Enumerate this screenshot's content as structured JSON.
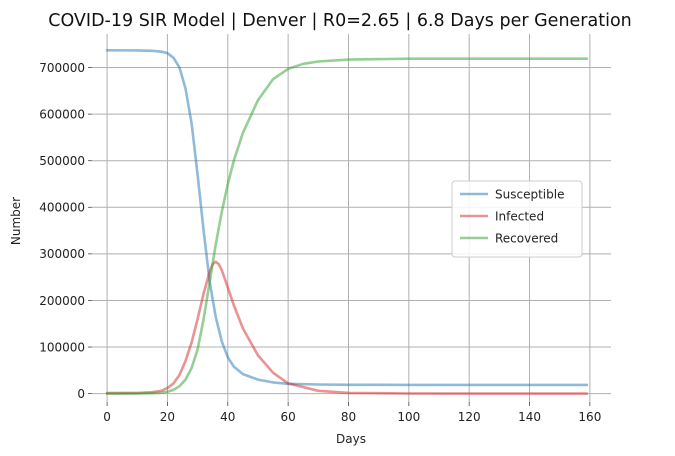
{
  "chart_data": {
    "type": "line",
    "title": "COVID-19 SIR Model | Denver | R0=2.65 | 6.8 Days per Generation",
    "xlabel": "Days",
    "ylabel": "Number",
    "xlim": [
      -5,
      167
    ],
    "ylim": [
      -18000,
      772000
    ],
    "xticks": [
      0,
      20,
      40,
      60,
      80,
      100,
      120,
      140,
      160
    ],
    "yticks": [
      0,
      100000,
      200000,
      300000,
      400000,
      500000,
      600000,
      700000
    ],
    "grid": true,
    "legend_position": "center-right",
    "series": [
      {
        "name": "Susceptible",
        "color": "#1f77b4",
        "x": [
          0,
          10,
          15,
          18,
          20,
          22,
          24,
          26,
          28,
          30,
          32,
          34,
          36,
          38,
          40,
          42,
          45,
          50,
          55,
          60,
          70,
          80,
          100,
          120,
          140,
          159
        ],
        "y": [
          737000,
          736800,
          736000,
          734000,
          731000,
          721000,
          700000,
          655000,
          580000,
          470000,
          350000,
          240000,
          165000,
          112000,
          78000,
          58000,
          42000,
          30000,
          24000,
          21000,
          19500,
          19000,
          18800,
          18800,
          18800,
          18800
        ]
      },
      {
        "name": "Infected",
        "color": "#d62728",
        "x": [
          0,
          10,
          15,
          18,
          20,
          22,
          24,
          26,
          28,
          30,
          32,
          34,
          35,
          36,
          37,
          38,
          40,
          42,
          45,
          50,
          55,
          60,
          70,
          80,
          100,
          120,
          140,
          159
        ],
        "y": [
          1000,
          1500,
          3000,
          6000,
          12000,
          22000,
          40000,
          70000,
          110000,
          160000,
          215000,
          262000,
          278000,
          283000,
          278000,
          265000,
          228000,
          190000,
          140000,
          82000,
          45000,
          22000,
          6000,
          1500,
          200,
          0,
          0,
          0
        ]
      },
      {
        "name": "Recovered",
        "color": "#2ca02c",
        "x": [
          0,
          10,
          15,
          18,
          20,
          22,
          24,
          26,
          28,
          30,
          32,
          34,
          36,
          38,
          40,
          42,
          45,
          50,
          55,
          60,
          65,
          70,
          80,
          100,
          120,
          140,
          159
        ],
        "y": [
          0,
          200,
          800,
          2000,
          4000,
          8000,
          16000,
          30000,
          55000,
          95000,
          160000,
          240000,
          320000,
          390000,
          450000,
          500000,
          560000,
          630000,
          675000,
          697000,
          708000,
          713000,
          717000,
          719000,
          719000,
          719000,
          719000
        ]
      }
    ]
  }
}
